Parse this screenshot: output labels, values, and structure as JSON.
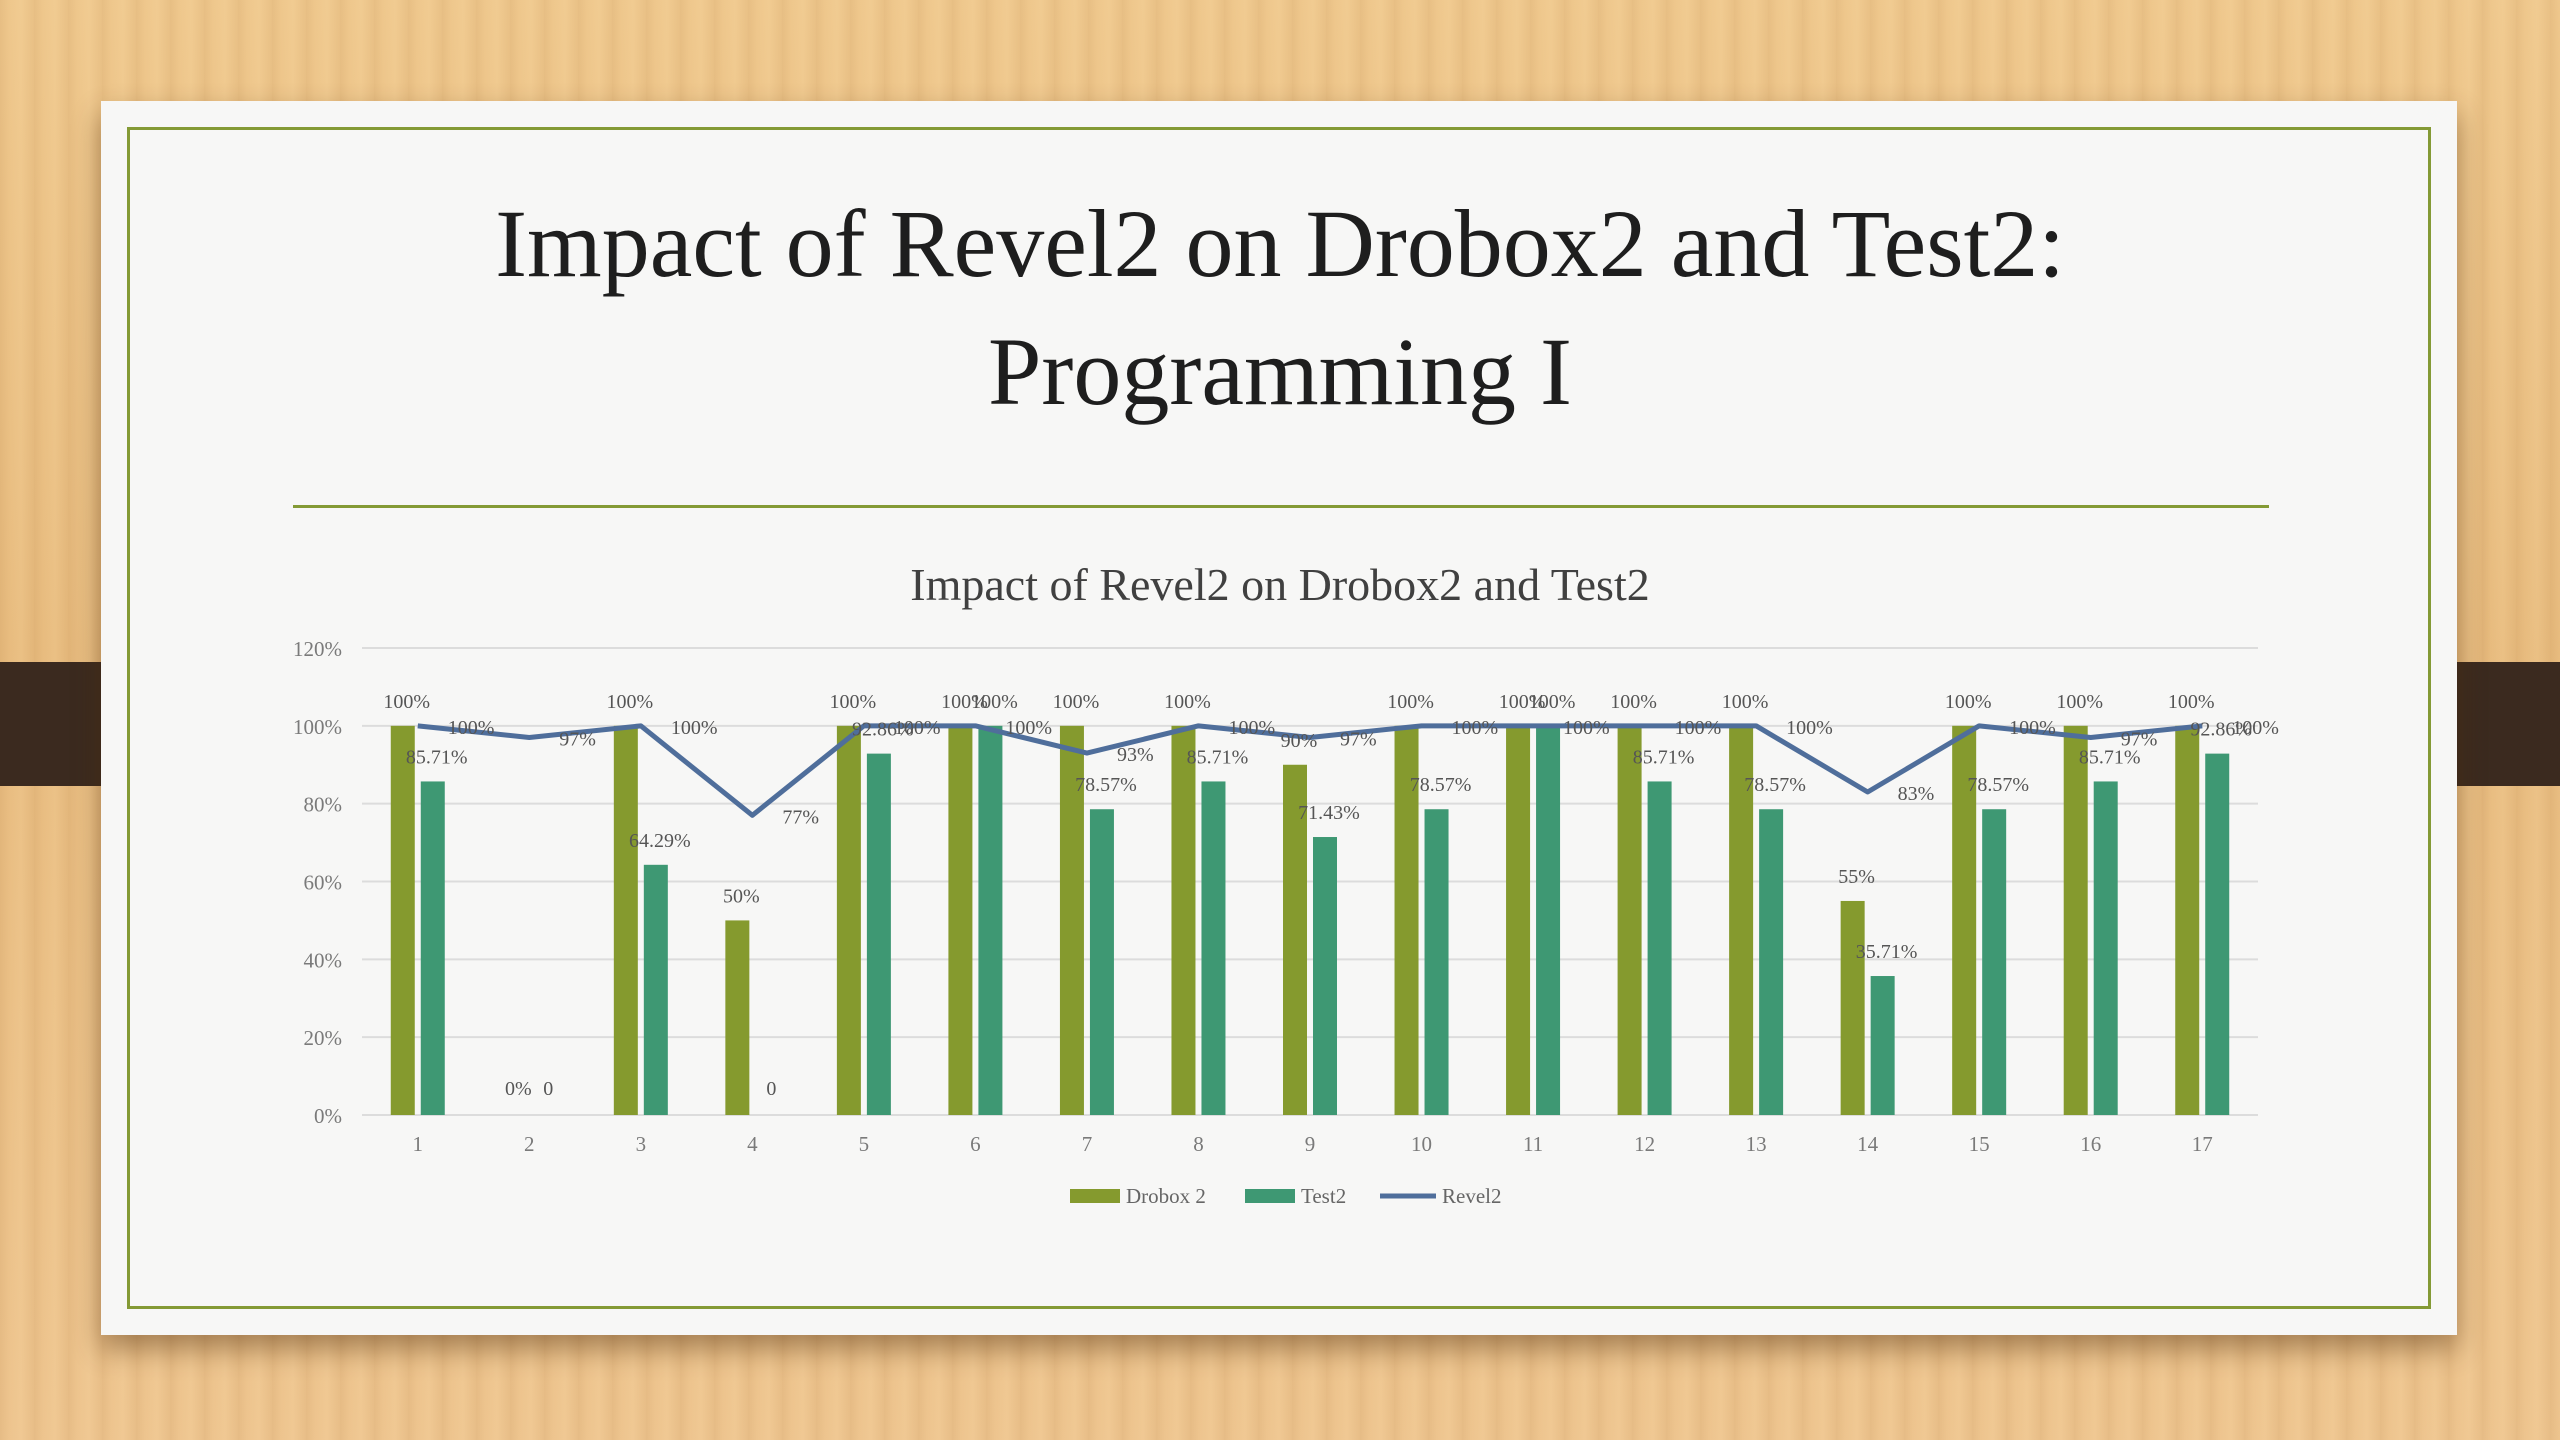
{
  "slide": {
    "title_line1": "Impact of Revel2 on Drobox2 and Test2:",
    "title_line2": "Programming I"
  },
  "colors": {
    "drobox": "#859a2e",
    "test": "#3e9873",
    "revel": "#4f6e9b",
    "border": "#849a35"
  },
  "chart_data": {
    "type": "bar",
    "title": "Impact of Revel2 on Drobox2 and Test2",
    "categories": [
      "1",
      "2",
      "3",
      "4",
      "5",
      "6",
      "7",
      "8",
      "9",
      "10",
      "11",
      "12",
      "13",
      "14",
      "15",
      "16",
      "17"
    ],
    "ylim": [
      0,
      120
    ],
    "yticks": [
      "0%",
      "20%",
      "40%",
      "60%",
      "80%",
      "100%",
      "120%"
    ],
    "grid": true,
    "legend_position": "bottom",
    "series": [
      {
        "name": "Drobox 2",
        "kind": "bar",
        "values": [
          100,
          0,
          100,
          50,
          100,
          100,
          100,
          100,
          90,
          100,
          100,
          100,
          100,
          55,
          100,
          100,
          100
        ],
        "labels": [
          "100%",
          "0%",
          "100%",
          "50%",
          "100%",
          "100%",
          "100%",
          "100%",
          "90%",
          "100%",
          "100%",
          "100%",
          "100%",
          "55%",
          "100%",
          "100%",
          "100%"
        ]
      },
      {
        "name": "Test2",
        "kind": "bar",
        "values": [
          85.71,
          0,
          64.29,
          0,
          92.86,
          100,
          78.57,
          85.71,
          71.43,
          78.57,
          100,
          85.71,
          78.57,
          35.71,
          78.57,
          85.71,
          92.86
        ],
        "labels": [
          "85.71%",
          "0",
          "64.29%",
          "0",
          "92.86%",
          "100%",
          "78.57%",
          "85.71%",
          "71.43%",
          "78.57%",
          "100%",
          "85.71%",
          "78.57%",
          "35.71%",
          "78.57%",
          "85.71%",
          "92.86%"
        ]
      },
      {
        "name": "Revel2",
        "kind": "line",
        "values": [
          100,
          97,
          100,
          77,
          100,
          100,
          93,
          100,
          97,
          100,
          100,
          100,
          100,
          83,
          100,
          97,
          100
        ],
        "labels": [
          "100%",
          "97%",
          "100%",
          "77%",
          "100%",
          "100%",
          "93%",
          "100%",
          "97%",
          "100%",
          "100%",
          "100%",
          "100%",
          "83%",
          "100%",
          "97%",
          "100%"
        ]
      }
    ]
  }
}
